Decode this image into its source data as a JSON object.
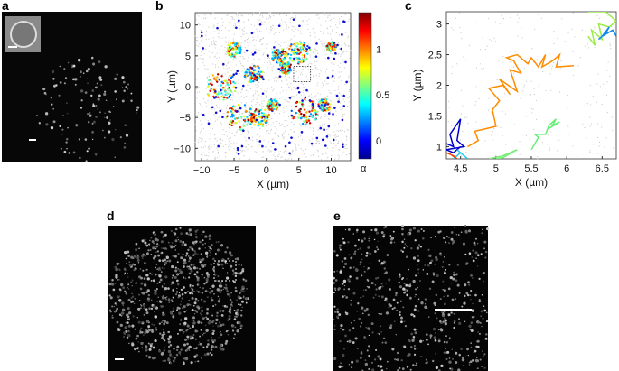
{
  "panels": {
    "a": {
      "label": "a"
    },
    "b": {
      "label": "b"
    },
    "c": {
      "label": "c"
    },
    "d": {
      "label": "d"
    },
    "e": {
      "label": "e"
    }
  },
  "colorbar": {
    "label": "α",
    "ticks": [
      "0",
      "0.5",
      "1"
    ],
    "range": [
      -0.2,
      1.4
    ],
    "colormap": "jet"
  },
  "chart_data": [
    {
      "type": "scatter",
      "panel": "b",
      "xlabel": "X (µm)",
      "ylabel": "Y (µm)",
      "xlim": [
        -11,
        13
      ],
      "ylim": [
        -12,
        12
      ],
      "xticks": [
        "-10",
        "-5",
        "0",
        "5",
        "10"
      ],
      "yticks": [
        "-10",
        "-5",
        "0",
        "5",
        "10"
      ],
      "color_by": "α",
      "inset_box": {
        "x": [
          4.2,
          6.8
        ],
        "y": [
          0.8,
          3.3
        ]
      }
    },
    {
      "type": "line",
      "panel": "c",
      "xlabel": "X (µm)",
      "ylabel": "Y (µm)",
      "xlim": [
        4.3,
        6.7
      ],
      "ylim": [
        0.8,
        3.2
      ],
      "xticks": [
        "4.5",
        "5",
        "5.5",
        "6",
        "6.5"
      ],
      "yticks": [
        "1",
        "1.5",
        "2",
        "2.5",
        "3"
      ],
      "series": [
        {
          "color": "#ff8c00",
          "x": [
            4.6,
            4.75,
            4.7,
            5.0,
            4.95,
            5.05,
            4.9,
            5.1,
            5.2,
            5.05,
            5.3,
            5.2,
            5.35,
            5.25,
            5.15,
            5.3,
            5.45,
            5.5,
            5.6,
            5.7,
            5.65,
            5.8,
            5.9,
            5.85,
            6.1
          ],
          "y": [
            1.0,
            1.1,
            1.25,
            1.33,
            1.6,
            1.75,
            1.95,
            2.0,
            1.85,
            2.1,
            1.9,
            2.25,
            2.2,
            2.4,
            2.45,
            2.5,
            2.35,
            2.45,
            2.3,
            2.5,
            2.3,
            2.4,
            2.5,
            2.3,
            2.32
          ]
        },
        {
          "color": "#66ee77",
          "x": [
            5.5,
            5.6,
            5.55,
            5.7,
            5.75,
            5.85,
            5.8,
            5.9,
            5.75
          ],
          "y": [
            0.95,
            1.15,
            1.2,
            1.2,
            1.35,
            1.45,
            1.35,
            1.4,
            1.3
          ]
        },
        {
          "color": "#99ee44",
          "x": [
            6.3,
            6.4,
            6.35,
            6.5,
            6.45,
            6.6,
            6.7,
            6.55,
            6.3
          ],
          "y": [
            2.8,
            2.65,
            2.9,
            2.75,
            3.0,
            2.95,
            3.05,
            3.2,
            3.2
          ]
        },
        {
          "color": "#0a88ee",
          "x": [
            6.45,
            6.55,
            6.6,
            6.5,
            6.65,
            6.7
          ],
          "y": [
            2.75,
            2.85,
            2.95,
            2.8,
            2.9,
            2.8
          ]
        },
        {
          "color": "#0000cc",
          "x": [
            4.3,
            4.4,
            4.35,
            4.5,
            4.45,
            4.55,
            4.3,
            4.4,
            4.5
          ],
          "y": [
            1.05,
            1.0,
            1.2,
            1.45,
            1.1,
            1.0,
            0.95,
            0.9,
            1.0
          ]
        },
        {
          "color": "#22ccee",
          "x": [
            4.4,
            4.5,
            4.55,
            4.45,
            4.6
          ],
          "y": [
            0.8,
            0.9,
            0.85,
            0.95,
            0.8
          ]
        },
        {
          "color": "#ee4411",
          "x": [
            4.3,
            4.4,
            4.45,
            4.35
          ],
          "y": [
            0.9,
            0.85,
            0.8,
            0.88
          ]
        },
        {
          "color": "#77ee77",
          "x": [
            4.9,
            5.1,
            5.2,
            5.3,
            5.1,
            5.0
          ],
          "y": [
            0.8,
            0.85,
            0.9,
            0.95,
            0.82,
            0.8
          ]
        }
      ]
    }
  ]
}
